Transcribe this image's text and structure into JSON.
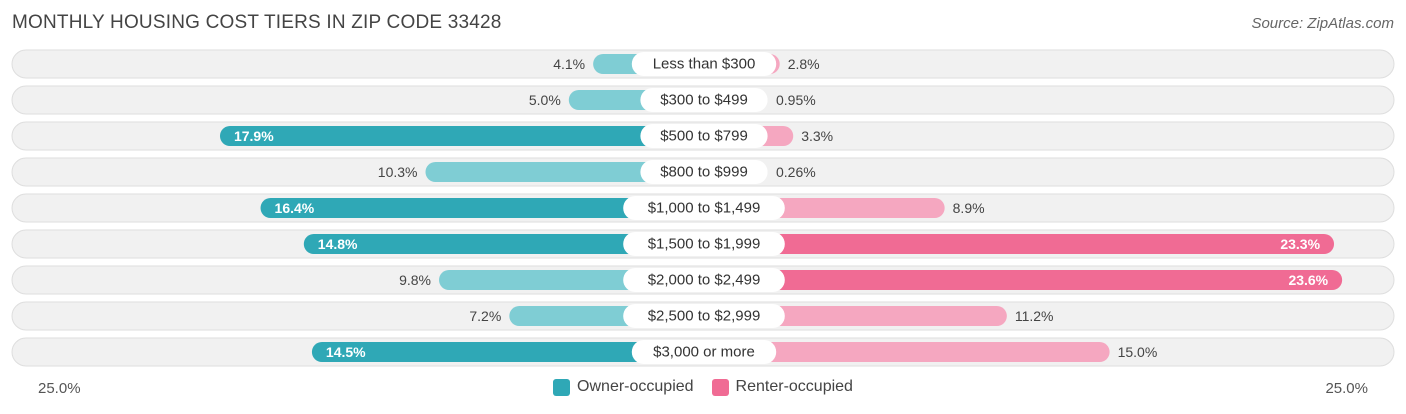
{
  "title": "MONTHLY HOUSING COST TIERS IN ZIP CODE 33428",
  "source": "Source: ZipAtlas.com",
  "colors": {
    "owner": "#2fa8b6",
    "owner_light": "#7fcdd4",
    "renter": "#f06b94",
    "renter_light": "#f5a7c0",
    "row_bg": "#f1f1f1",
    "row_border": "#dedede"
  },
  "legend": {
    "owner_label": "Owner-occupied",
    "renter_label": "Renter-occupied"
  },
  "axis": {
    "left_label": "25.0%",
    "right_label": "25.0%"
  },
  "chart_data": {
    "type": "bar",
    "orientation": "diverging-horizontal",
    "xlim": [
      0,
      25.0
    ],
    "categories": [
      "Less than $300",
      "$300 to $499",
      "$500 to $799",
      "$800 to $999",
      "$1,000 to $1,499",
      "$1,500 to $1,999",
      "$2,000 to $2,499",
      "$2,500 to $2,999",
      "$3,000 or more"
    ],
    "series": [
      {
        "name": "Owner-occupied",
        "values": [
          4.1,
          5.0,
          17.9,
          10.3,
          16.4,
          14.8,
          9.8,
          7.2,
          14.5
        ],
        "labels": [
          "4.1%",
          "5.0%",
          "17.9%",
          "10.3%",
          "16.4%",
          "14.8%",
          "9.8%",
          "7.2%",
          "14.5%"
        ]
      },
      {
        "name": "Renter-occupied",
        "values": [
          2.8,
          0.95,
          3.3,
          0.26,
          8.9,
          23.3,
          23.6,
          11.2,
          15.0
        ],
        "labels": [
          "2.8%",
          "0.95%",
          "3.3%",
          "0.26%",
          "8.9%",
          "23.3%",
          "23.6%",
          "11.2%",
          "15.0%"
        ]
      }
    ]
  }
}
